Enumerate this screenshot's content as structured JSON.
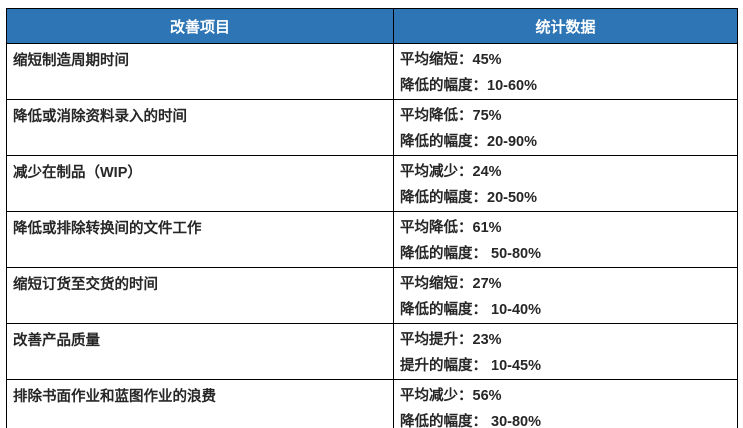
{
  "page": {
    "background": "#FFFFFF"
  },
  "table": {
    "columns": [
      {
        "label": "改善项目"
      },
      {
        "label": "统计数据"
      }
    ],
    "rows": [
      {
        "item": "缩短制造周期时间",
        "stat_average": "平均缩短：45%",
        "stat_range": "降低的幅度：10-60%"
      },
      {
        "item": "降低或消除资料录入的时间",
        "stat_average": "平均降低：75%",
        "stat_range": "降低的幅度：20-90%"
      },
      {
        "item": "减少在制品（WIP）",
        "stat_average": "平均减少：24%",
        "stat_range": "降低的幅度：20-50%"
      },
      {
        "item": "降低或排除转换间的文件工作",
        "stat_average": "平均降低：61%",
        "stat_range": "降低的幅度： 50-80%"
      },
      {
        "item": "缩短订货至交货的时间",
        "stat_average": "平均缩短：27%",
        "stat_range": "降低的幅度： 10-40%"
      },
      {
        "item": "改善产品质量",
        "stat_average": "平均提升：23%",
        "stat_range": "提升的幅度： 10-45%"
      },
      {
        "item": "排除书面作业和蓝图作业的浪费",
        "stat_average": "平均减少：56%",
        "stat_range": "降低的幅度： 30-80%"
      }
    ],
    "colors": {
      "header_bg": "#2E75B6",
      "header_text": "#FFFFFF",
      "border": "#000000",
      "cell_text": "#262626",
      "page_bg": "#FFFFFF"
    }
  }
}
